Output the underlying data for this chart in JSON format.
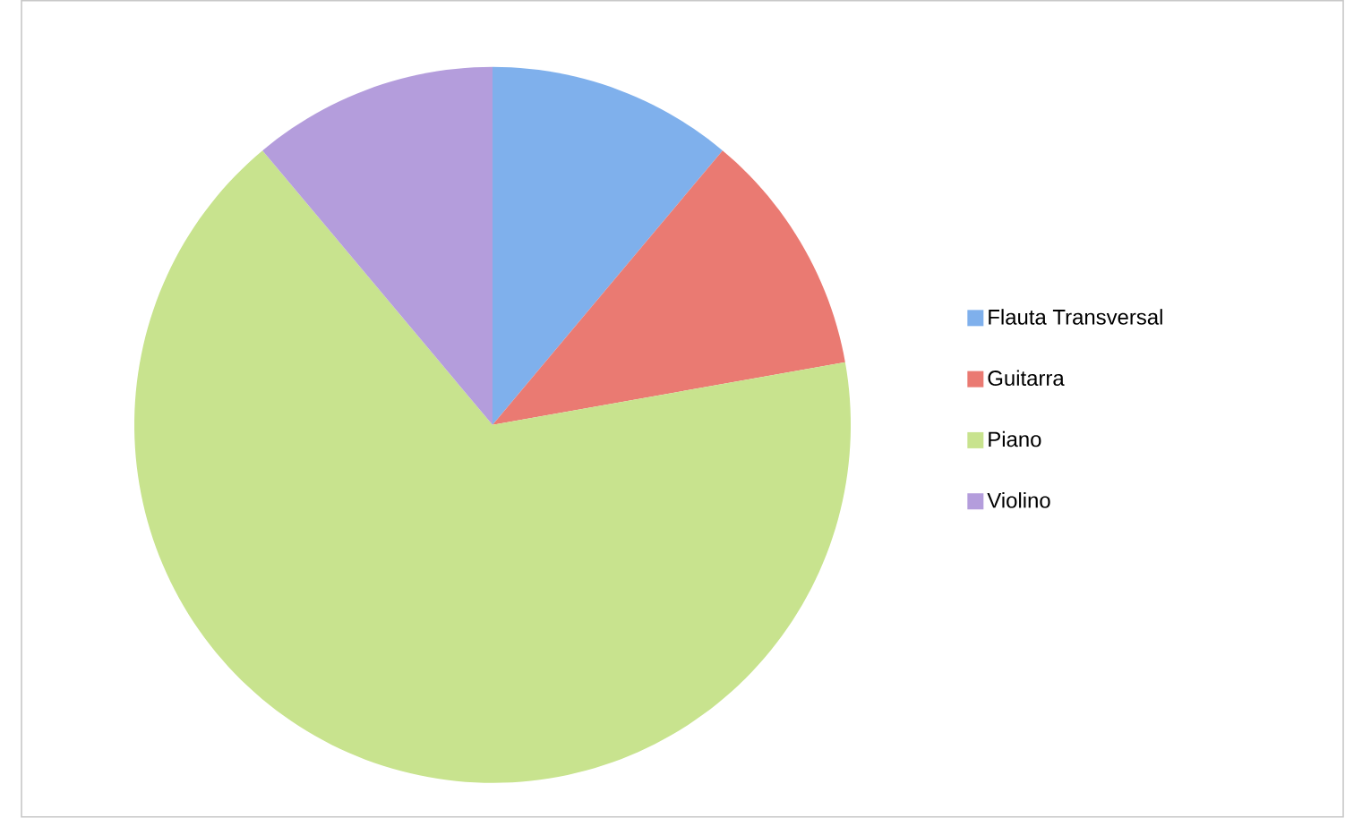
{
  "chart_data": {
    "type": "pie",
    "categories": [
      "Flauta Transversal",
      "Guitarra",
      "Piano",
      "Violino"
    ],
    "values": [
      11.1,
      11.1,
      66.7,
      11.1
    ],
    "colors": [
      "#7fb0ec",
      "#ea7a72",
      "#c8e38e",
      "#b49ddc"
    ],
    "legend": "right"
  }
}
